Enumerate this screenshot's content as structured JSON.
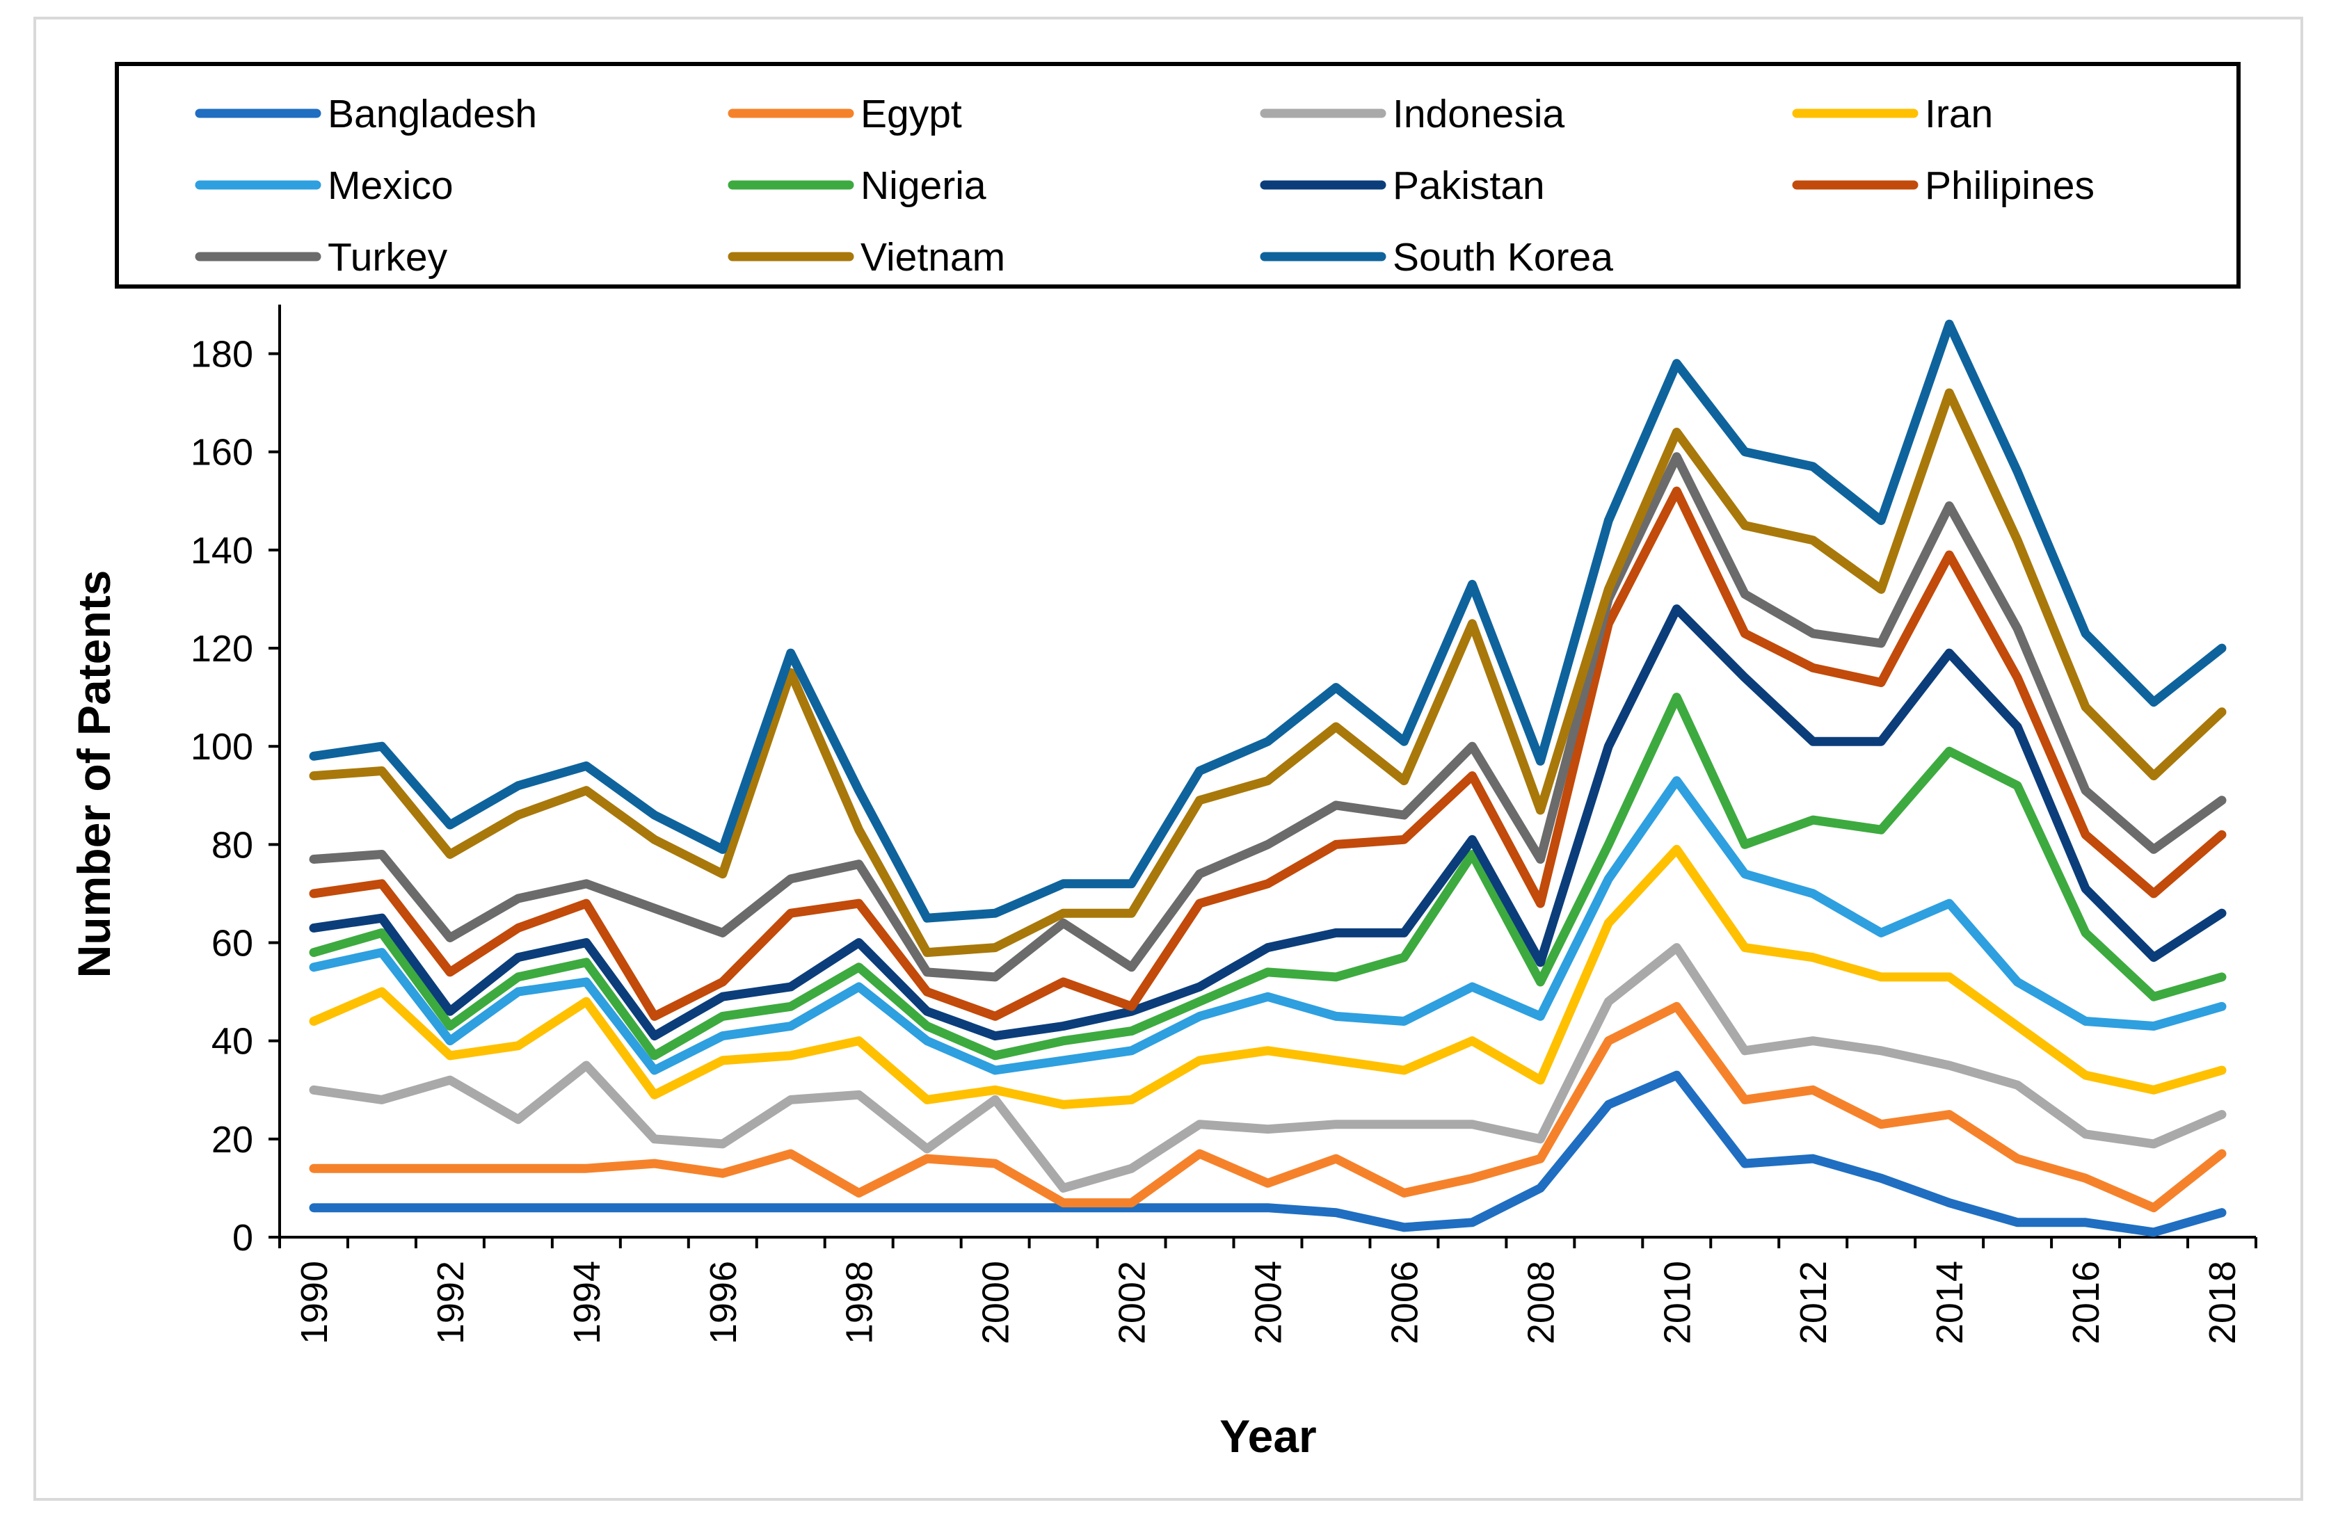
{
  "chart_data": {
    "type": "line",
    "title": "",
    "xlabel": "Year",
    "ylabel": "Number of Patents",
    "ylim": [
      0,
      190
    ],
    "yticks": [
      0,
      20,
      40,
      60,
      80,
      100,
      120,
      140,
      160,
      180
    ],
    "x": [
      1990,
      1991,
      1992,
      1993,
      1994,
      1995,
      1996,
      1997,
      1998,
      1999,
      2000,
      2001,
      2002,
      2003,
      2004,
      2005,
      2006,
      2007,
      2008,
      2009,
      2010,
      2011,
      2012,
      2013,
      2014,
      2015,
      2016,
      2017,
      2018
    ],
    "xtick_labels": [
      "1990",
      "1992",
      "1994",
      "1996",
      "1998",
      "2000",
      "2002",
      "2004",
      "2006",
      "2008",
      "2010",
      "2012",
      "2014",
      "2016",
      "2018"
    ],
    "legend_position": "top",
    "series": [
      {
        "name": "Bangladesh",
        "color": "#1F6EC1",
        "values": [
          6,
          6,
          6,
          6,
          6,
          6,
          6,
          6,
          6,
          6,
          6,
          6,
          6,
          6,
          6,
          5,
          2,
          3,
          10,
          27,
          33,
          15,
          16,
          12,
          7,
          3,
          3,
          1,
          5
        ]
      },
      {
        "name": "Egypt",
        "color": "#F5822B",
        "values": [
          14,
          14,
          14,
          14,
          14,
          15,
          13,
          17,
          9,
          16,
          15,
          7,
          7,
          17,
          11,
          16,
          9,
          12,
          16,
          40,
          47,
          28,
          30,
          23,
          25,
          16,
          12,
          6,
          17
        ]
      },
      {
        "name": "Indonesia",
        "color": "#A9A9A9",
        "values": [
          30,
          28,
          32,
          24,
          35,
          20,
          19,
          28,
          29,
          18,
          28,
          10,
          14,
          23,
          22,
          23,
          23,
          23,
          20,
          48,
          59,
          38,
          40,
          38,
          35,
          31,
          21,
          19,
          25
        ]
      },
      {
        "name": "Iran",
        "color": "#FFC000",
        "values": [
          44,
          50,
          37,
          39,
          48,
          29,
          36,
          37,
          40,
          28,
          30,
          27,
          28,
          36,
          38,
          36,
          34,
          40,
          32,
          64,
          79,
          59,
          57,
          53,
          53,
          43,
          33,
          30,
          34
        ]
      },
      {
        "name": "Mexico",
        "color": "#2E9FDF",
        "values": [
          55,
          58,
          40,
          50,
          52,
          34,
          41,
          43,
          51,
          40,
          34,
          36,
          38,
          45,
          49,
          45,
          44,
          51,
          45,
          73,
          93,
          74,
          70,
          62,
          68,
          52,
          44,
          43,
          47
        ]
      },
      {
        "name": "Nigeria",
        "color": "#3DAA3F",
        "values": [
          58,
          62,
          43,
          53,
          56,
          37,
          45,
          47,
          55,
          43,
          37,
          40,
          42,
          48,
          54,
          53,
          57,
          78,
          52,
          80,
          110,
          80,
          85,
          83,
          99,
          92,
          62,
          49,
          53
        ]
      },
      {
        "name": "Pakistan",
        "color": "#0B3D7A",
        "values": [
          63,
          65,
          46,
          57,
          60,
          41,
          49,
          51,
          60,
          46,
          41,
          43,
          46,
          51,
          59,
          62,
          62,
          81,
          56,
          100,
          128,
          114,
          101,
          101,
          119,
          104,
          71,
          57,
          66
        ]
      },
      {
        "name": "Philipines",
        "color": "#C24A0A",
        "values": [
          70,
          72,
          54,
          63,
          68,
          45,
          52,
          66,
          68,
          50,
          45,
          52,
          47,
          68,
          72,
          80,
          81,
          94,
          68,
          125,
          152,
          123,
          116,
          113,
          139,
          114,
          82,
          70,
          82
        ]
      },
      {
        "name": "Turkey",
        "color": "#6B6B6B",
        "values": [
          77,
          78,
          61,
          69,
          72,
          67,
          62,
          73,
          76,
          54,
          53,
          64,
          55,
          74,
          80,
          88,
          86,
          100,
          77,
          130,
          159,
          131,
          123,
          121,
          149,
          124,
          91,
          79,
          89
        ]
      },
      {
        "name": "Vietnam",
        "color": "#A8780A",
        "values": [
          94,
          95,
          78,
          86,
          91,
          81,
          74,
          115,
          83,
          58,
          59,
          66,
          66,
          89,
          93,
          104,
          93,
          125,
          87,
          132,
          164,
          145,
          142,
          132,
          172,
          142,
          108,
          94,
          107
        ]
      },
      {
        "name": "South Korea",
        "color": "#0E639C",
        "values": [
          98,
          100,
          84,
          92,
          96,
          86,
          79,
          119,
          91,
          65,
          66,
          72,
          72,
          95,
          101,
          112,
          101,
          133,
          97,
          146,
          178,
          160,
          157,
          146,
          186,
          156,
          123,
          109,
          120
        ]
      }
    ]
  }
}
